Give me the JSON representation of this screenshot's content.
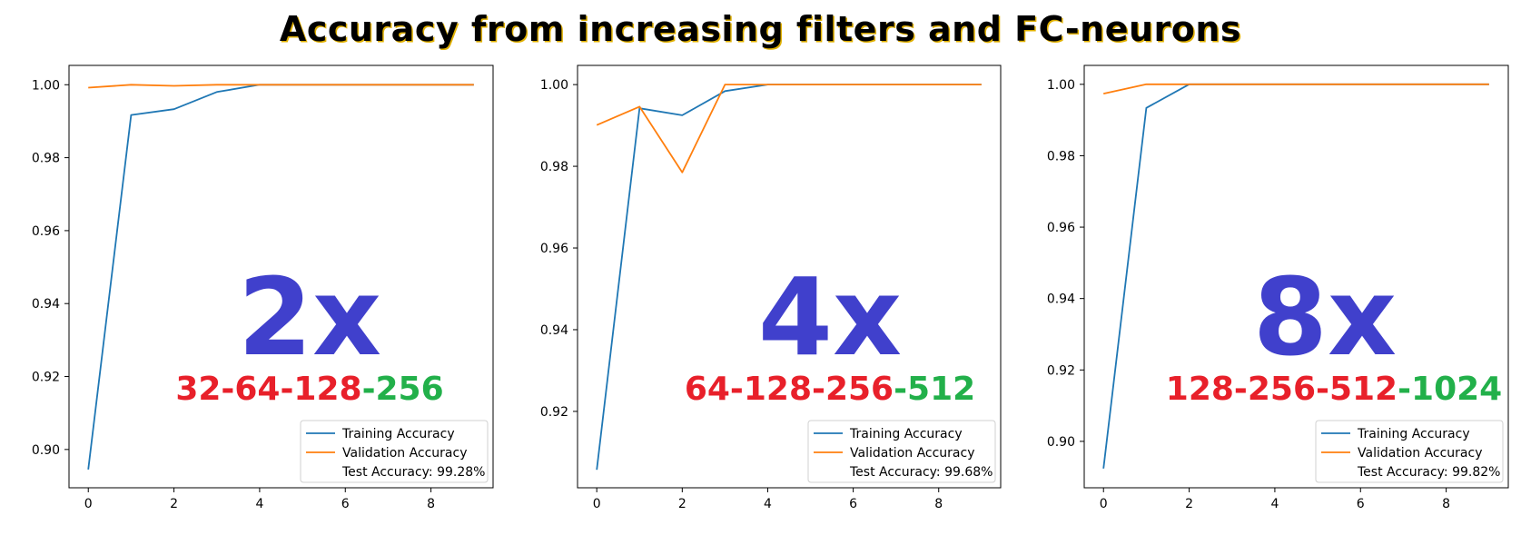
{
  "title": "Accuracy from increasing filters and FC-neurons",
  "colors": {
    "training": "#1f77b4",
    "validation": "#ff7f0e",
    "multiplier": "#4040cc",
    "arch_red": "#e8202a",
    "arch_green": "#22b04a"
  },
  "chart_data": [
    {
      "type": "line",
      "x": [
        0,
        1,
        2,
        3,
        4,
        5,
        6,
        7,
        8,
        9
      ],
      "xticks": [
        "0",
        "2",
        "4",
        "6",
        "8"
      ],
      "yticks": [
        "0.90",
        "0.92",
        "0.94",
        "0.96",
        "0.98",
        "1.00"
      ],
      "xlim": [
        -0.45,
        9.45
      ],
      "ylim": [
        0.8895,
        1.0053
      ],
      "series": [
        {
          "name": "Training Accuracy",
          "values": [
            0.8945,
            0.9917,
            0.9933,
            0.998,
            1.0,
            1.0,
            1.0,
            1.0,
            1.0,
            1.0
          ]
        },
        {
          "name": "Validation Accuracy",
          "values": [
            0.9992,
            1.0,
            0.9997,
            1.0,
            1.0,
            1.0,
            1.0,
            1.0,
            1.0,
            1.0
          ]
        }
      ],
      "legend_note": "Test Accuracy: 99.28%",
      "legend_position": "lower-right",
      "multiplier": "2x",
      "arch_red": "32-64-128",
      "arch_green": "-256"
    },
    {
      "type": "line",
      "x": [
        0,
        1,
        2,
        3,
        4,
        5,
        6,
        7,
        8,
        9
      ],
      "xticks": [
        "0",
        "2",
        "4",
        "6",
        "8"
      ],
      "yticks": [
        "0.92",
        "0.94",
        "0.96",
        "0.98",
        "1.00"
      ],
      "xlim": [
        -0.45,
        9.45
      ],
      "ylim": [
        0.9013,
        1.0047
      ],
      "series": [
        {
          "name": "Training Accuracy",
          "values": [
            0.9057,
            0.9942,
            0.9925,
            0.9984,
            1.0,
            1.0,
            1.0,
            1.0,
            1.0,
            1.0
          ]
        },
        {
          "name": "Validation Accuracy",
          "values": [
            0.9901,
            0.9946,
            0.9785,
            1.0,
            1.0,
            1.0,
            1.0,
            1.0,
            1.0,
            1.0
          ]
        }
      ],
      "legend_note": "Test Accuracy: 99.68%",
      "legend_position": "lower-right",
      "multiplier": "4x",
      "arch_red": "64-128-256",
      "arch_green": "-512"
    },
    {
      "type": "line",
      "x": [
        0,
        1,
        2,
        3,
        4,
        5,
        6,
        7,
        8,
        9
      ],
      "xticks": [
        "0",
        "2",
        "4",
        "6",
        "8"
      ],
      "yticks": [
        "0.90",
        "0.92",
        "0.94",
        "0.96",
        "0.98",
        "1.00"
      ],
      "xlim": [
        -0.45,
        9.45
      ],
      "ylim": [
        0.887,
        1.0053
      ],
      "series": [
        {
          "name": "Training Accuracy",
          "values": [
            0.8924,
            0.9934,
            1.0,
            1.0,
            1.0,
            1.0,
            1.0,
            1.0,
            1.0,
            1.0
          ]
        },
        {
          "name": "Validation Accuracy",
          "values": [
            0.9974,
            1.0,
            1.0,
            1.0,
            1.0,
            1.0,
            1.0,
            1.0,
            1.0,
            1.0
          ]
        }
      ],
      "legend_note": "Test Accuracy: 99.82%",
      "legend_position": "lower-right",
      "multiplier": "8x",
      "arch_red": "128-256-512",
      "arch_green": "-1024"
    }
  ]
}
